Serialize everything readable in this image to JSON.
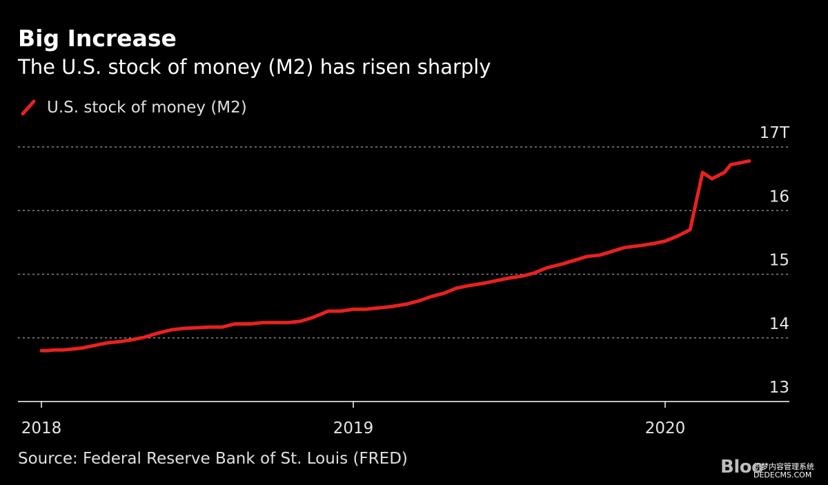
{
  "header": {
    "title": "Big Increase",
    "subtitle": "The U.S. stock of money (M2) has risen sharply"
  },
  "legend": {
    "label": "U.S. stock of money (M2)"
  },
  "footer": {
    "source": "Source: Federal Reserve Bank of St. Louis (FRED)",
    "brand": "Bloo",
    "watermark_top": "织梦内容管理系统",
    "watermark_bottom": "DEDECMS.COM"
  },
  "colors": {
    "background": "#000000",
    "series": "#e8211f",
    "grid": "#8a8a8a",
    "axis": "#ffffff",
    "text": "#e6e6e6"
  },
  "chart_data": {
    "type": "line",
    "title": "Big Increase",
    "subtitle": "The U.S. stock of money (M2) has risen sharply",
    "xlabel": "",
    "ylabel": "",
    "xlim": [
      2018.0,
      2020.4
    ],
    "ylim": [
      13,
      17
    ],
    "grid": true,
    "legend_position": "top-left",
    "y_axis_side": "right",
    "x_ticks": [
      {
        "value": 2018,
        "label": "2018"
      },
      {
        "value": 2019,
        "label": "2019"
      },
      {
        "value": 2020,
        "label": "2020"
      }
    ],
    "y_ticks": [
      {
        "value": 17,
        "label": "17T"
      },
      {
        "value": 16,
        "label": "16"
      },
      {
        "value": 15,
        "label": "15"
      },
      {
        "value": 14,
        "label": "14"
      },
      {
        "value": 13,
        "label": "13"
      }
    ],
    "series": [
      {
        "name": "U.S. stock of money (M2)",
        "color": "#e8211f",
        "x": [
          2018.0,
          2018.02,
          2018.04,
          2018.07,
          2018.09,
          2018.13,
          2018.17,
          2018.21,
          2018.25,
          2018.29,
          2018.33,
          2018.37,
          2018.42,
          2018.46,
          2018.5,
          2018.54,
          2018.58,
          2018.62,
          2018.67,
          2018.71,
          2018.75,
          2018.79,
          2018.83,
          2018.87,
          2018.92,
          2018.96,
          2019.0,
          2019.04,
          2019.08,
          2019.12,
          2019.17,
          2019.21,
          2019.25,
          2019.29,
          2019.33,
          2019.37,
          2019.42,
          2019.46,
          2019.5,
          2019.54,
          2019.58,
          2019.62,
          2019.67,
          2019.71,
          2019.75,
          2019.79,
          2019.83,
          2019.87,
          2019.92,
          2019.96,
          2020.0,
          2020.04,
          2020.08,
          2020.12,
          2020.15,
          2020.19,
          2020.21,
          2020.24,
          2020.27
        ],
        "values": [
          13.8,
          13.8,
          13.81,
          13.81,
          13.82,
          13.84,
          13.88,
          13.92,
          13.94,
          13.97,
          14.01,
          14.07,
          14.13,
          14.15,
          14.16,
          14.17,
          14.17,
          14.22,
          14.22,
          14.24,
          14.24,
          14.24,
          14.26,
          14.32,
          14.42,
          14.42,
          14.45,
          14.45,
          14.47,
          14.49,
          14.53,
          14.58,
          14.65,
          14.7,
          14.78,
          14.82,
          14.86,
          14.9,
          14.94,
          14.97,
          15.02,
          15.1,
          15.16,
          15.22,
          15.28,
          15.3,
          15.36,
          15.42,
          15.45,
          15.48,
          15.52,
          15.6,
          15.7,
          16.6,
          16.5,
          16.6,
          16.72,
          16.75,
          16.78
        ]
      }
    ]
  }
}
